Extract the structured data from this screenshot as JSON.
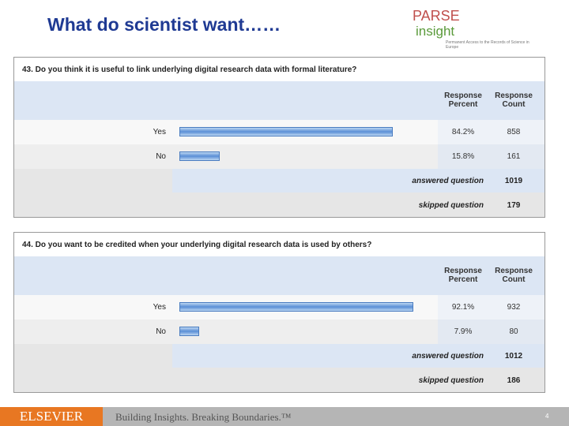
{
  "header": {
    "title": "What do scientist want……",
    "logo": {
      "line1": "PARSE",
      "line2": "insight",
      "tagline": "Permanent Access to the Records of Science in Europe"
    }
  },
  "surveys": [
    {
      "question": "43. Do you think it is useful to link underlying digital research data with formal literature?",
      "headers": [
        "Response Percent",
        "Response Count"
      ],
      "rows": [
        {
          "answer": "Yes",
          "percent": 84.2,
          "percent_label": "84.2%",
          "count": 858
        },
        {
          "answer": "No",
          "percent": 15.8,
          "percent_label": "15.8%",
          "count": 161
        }
      ],
      "answered_label": "answered question",
      "answered": 1019,
      "skipped_label": "skipped question",
      "skipped": 179
    },
    {
      "question": "44. Do you want to be credited when your underlying digital research data is used by others?",
      "headers": [
        "Response Percent",
        "Response Count"
      ],
      "rows": [
        {
          "answer": "Yes",
          "percent": 92.1,
          "percent_label": "92.1%",
          "count": 932
        },
        {
          "answer": "No",
          "percent": 7.9,
          "percent_label": "7.9%",
          "count": 80
        }
      ],
      "answered_label": "answered question",
      "answered": 1012,
      "skipped_label": "skipped question",
      "skipped": 186
    }
  ],
  "footer": {
    "brand": "ELSEVIER",
    "slogan": "Building Insights. Breaking Boundaries.™",
    "page": 4
  }
}
